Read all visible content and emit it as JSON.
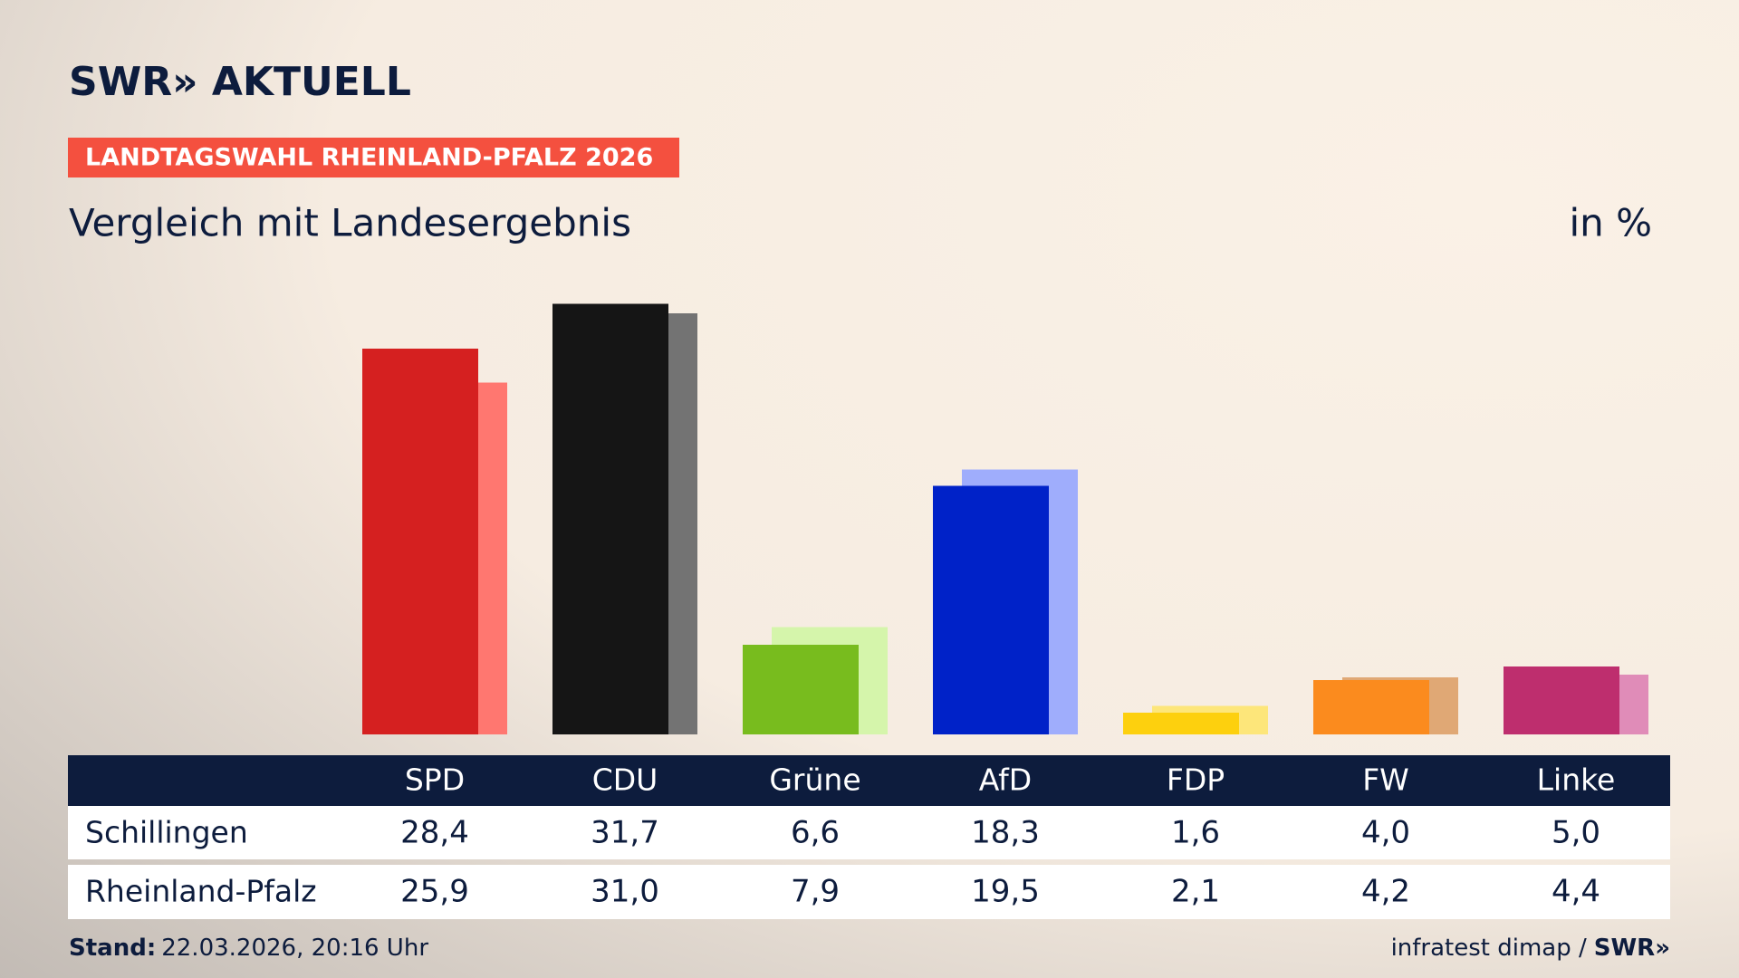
{
  "brand": "SWR» AKTUELL",
  "chart_data": {
    "type": "bar",
    "kicker": "LANDTAGSWAHL RHEINLAND-PFALZ 2026",
    "title": "Vergleich mit Landesergebnis",
    "unit": "in %",
    "categories": [
      "SPD",
      "CDU",
      "Grüne",
      "AfD",
      "FDP",
      "FW",
      "Linke"
    ],
    "series": [
      {
        "name": "Schillingen",
        "colors": [
          "#d52020",
          "#151515",
          "#78bc1e",
          "#0022c8",
          "#fdd00e",
          "#fb8b1e",
          "#be2e6e"
        ],
        "values": [
          28.4,
          31.7,
          6.6,
          18.3,
          1.6,
          4.0,
          5.0
        ],
        "value_labels": [
          "28,4",
          "31,7",
          "6,6",
          "18,3",
          "1,6",
          "4,0",
          "5,0"
        ]
      },
      {
        "name": "Rheinland-Pfalz",
        "colors": [
          "#ff7770",
          "#737373",
          "#d5f5ab",
          "#9fadfc",
          "#fde67a",
          "#e0a875",
          "#e08cb8"
        ],
        "values": [
          25.9,
          31.0,
          7.9,
          19.5,
          2.1,
          4.2,
          4.4
        ],
        "value_labels": [
          "25,9",
          "31,0",
          "7,9",
          "19,5",
          "2,1",
          "4,2",
          "4,4"
        ]
      }
    ],
    "stand_label": "Stand:",
    "stand": "22.03.2026, 20:16 Uhr",
    "source": "infratest dimap /",
    "source_brand": "SWR»"
  }
}
